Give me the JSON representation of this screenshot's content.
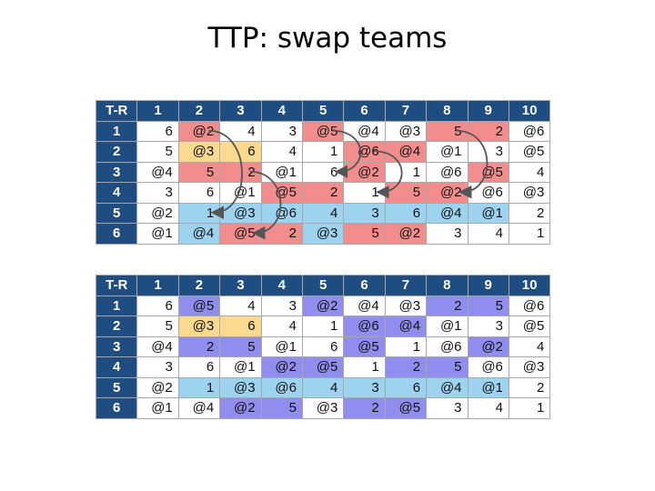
{
  "title": "TTP: swap teams",
  "header": [
    "T-R",
    "1",
    "2",
    "3",
    "4",
    "5",
    "6",
    "7",
    "8",
    "9",
    "10"
  ],
  "colors": {
    "white": "#ffffff",
    "red": "#f28d8d",
    "yellow": "#fbd98f",
    "blue": "#9ed3ef",
    "purple": "#8f8dee",
    "header": "#1f4d82"
  },
  "tables": [
    {
      "rows": [
        {
          "team": "1",
          "cells": [
            [
              "6",
              "white"
            ],
            [
              "@2",
              "red"
            ],
            [
              "4",
              "white"
            ],
            [
              "3",
              "white"
            ],
            [
              "@5",
              "red"
            ],
            [
              "@4",
              "white"
            ],
            [
              "@3",
              "white"
            ],
            [
              "5",
              "red"
            ],
            [
              "2",
              "red"
            ],
            [
              "@6",
              "white"
            ]
          ]
        },
        {
          "team": "2",
          "cells": [
            [
              "5",
              "white"
            ],
            [
              "@3",
              "yellow"
            ],
            [
              "6",
              "yellow"
            ],
            [
              "4",
              "white"
            ],
            [
              "1",
              "white"
            ],
            [
              "@6",
              "red"
            ],
            [
              "@4",
              "red"
            ],
            [
              "@1",
              "white"
            ],
            [
              "3",
              "white"
            ],
            [
              "@5",
              "white"
            ]
          ]
        },
        {
          "team": "3",
          "cells": [
            [
              "@4",
              "white"
            ],
            [
              "5",
              "red"
            ],
            [
              "2",
              "red"
            ],
            [
              "@1",
              "white"
            ],
            [
              "6",
              "white"
            ],
            [
              "@2",
              "red"
            ],
            [
              "1",
              "white"
            ],
            [
              "@6",
              "white"
            ],
            [
              "@5",
              "red"
            ],
            [
              "4",
              "white"
            ]
          ]
        },
        {
          "team": "4",
          "cells": [
            [
              "3",
              "white"
            ],
            [
              "6",
              "white"
            ],
            [
              "@1",
              "white"
            ],
            [
              "@5",
              "red"
            ],
            [
              "2",
              "red"
            ],
            [
              "1",
              "white"
            ],
            [
              "5",
              "red"
            ],
            [
              "@2",
              "red"
            ],
            [
              "@6",
              "white"
            ],
            [
              "@3",
              "white"
            ]
          ]
        },
        {
          "team": "5",
          "cells": [
            [
              "@2",
              "white"
            ],
            [
              "1",
              "blue"
            ],
            [
              "@3",
              "blue"
            ],
            [
              "@6",
              "blue"
            ],
            [
              "4",
              "blue"
            ],
            [
              "3",
              "blue"
            ],
            [
              "6",
              "blue"
            ],
            [
              "@4",
              "blue"
            ],
            [
              "@1",
              "blue"
            ],
            [
              "2",
              "white"
            ]
          ]
        },
        {
          "team": "6",
          "cells": [
            [
              "@1",
              "white"
            ],
            [
              "@4",
              "blue"
            ],
            [
              "@5",
              "red"
            ],
            [
              "2",
              "red"
            ],
            [
              "@3",
              "blue"
            ],
            [
              "5",
              "red"
            ],
            [
              "@2",
              "red"
            ],
            [
              "3",
              "white"
            ],
            [
              "4",
              "white"
            ],
            [
              "1",
              "white"
            ]
          ]
        }
      ]
    },
    {
      "rows": [
        {
          "team": "1",
          "cells": [
            [
              "6",
              "white"
            ],
            [
              "@5",
              "purple"
            ],
            [
              "4",
              "white"
            ],
            [
              "3",
              "white"
            ],
            [
              "@2",
              "purple"
            ],
            [
              "@4",
              "white"
            ],
            [
              "@3",
              "white"
            ],
            [
              "2",
              "purple"
            ],
            [
              "5",
              "purple"
            ],
            [
              "@6",
              "white"
            ]
          ]
        },
        {
          "team": "2",
          "cells": [
            [
              "5",
              "white"
            ],
            [
              "@3",
              "yellow"
            ],
            [
              "6",
              "yellow"
            ],
            [
              "4",
              "white"
            ],
            [
              "1",
              "white"
            ],
            [
              "@6",
              "purple"
            ],
            [
              "@4",
              "purple"
            ],
            [
              "@1",
              "white"
            ],
            [
              "3",
              "white"
            ],
            [
              "@5",
              "white"
            ]
          ]
        },
        {
          "team": "3",
          "cells": [
            [
              "@4",
              "white"
            ],
            [
              "2",
              "purple"
            ],
            [
              "5",
              "purple"
            ],
            [
              "@1",
              "white"
            ],
            [
              "6",
              "white"
            ],
            [
              "@5",
              "purple"
            ],
            [
              "1",
              "white"
            ],
            [
              "@6",
              "white"
            ],
            [
              "@2",
              "purple"
            ],
            [
              "4",
              "white"
            ]
          ]
        },
        {
          "team": "4",
          "cells": [
            [
              "3",
              "white"
            ],
            [
              "6",
              "white"
            ],
            [
              "@1",
              "white"
            ],
            [
              "@2",
              "purple"
            ],
            [
              "@5",
              "purple"
            ],
            [
              "1",
              "white"
            ],
            [
              "2",
              "purple"
            ],
            [
              "5",
              "purple"
            ],
            [
              "@6",
              "white"
            ],
            [
              "@3",
              "white"
            ]
          ]
        },
        {
          "team": "5",
          "cells": [
            [
              "@2",
              "white"
            ],
            [
              "1",
              "blue"
            ],
            [
              "@3",
              "blue"
            ],
            [
              "@6",
              "blue"
            ],
            [
              "4",
              "blue"
            ],
            [
              "3",
              "blue"
            ],
            [
              "6",
              "blue"
            ],
            [
              "@4",
              "blue"
            ],
            [
              "@1",
              "blue"
            ],
            [
              "2",
              "white"
            ]
          ]
        },
        {
          "team": "6",
          "cells": [
            [
              "@1",
              "white"
            ],
            [
              "@4",
              "white"
            ],
            [
              "@2",
              "purple"
            ],
            [
              "5",
              "purple"
            ],
            [
              "@3",
              "white"
            ],
            [
              "2",
              "purple"
            ],
            [
              "@5",
              "purple"
            ],
            [
              "3",
              "white"
            ],
            [
              "4",
              "white"
            ],
            [
              "1",
              "white"
            ]
          ]
        }
      ]
    }
  ],
  "swap_arrows": [
    {
      "row_from": 1,
      "row_to": 5,
      "col": 2
    },
    {
      "row_from": 1,
      "row_to": 3,
      "col": 5
    },
    {
      "row_from": 1,
      "row_to": 4,
      "col": 8
    },
    {
      "row_from": 3,
      "row_to": 6,
      "col": 3
    },
    {
      "row_from": 2,
      "row_to": 4,
      "col": 6
    }
  ]
}
